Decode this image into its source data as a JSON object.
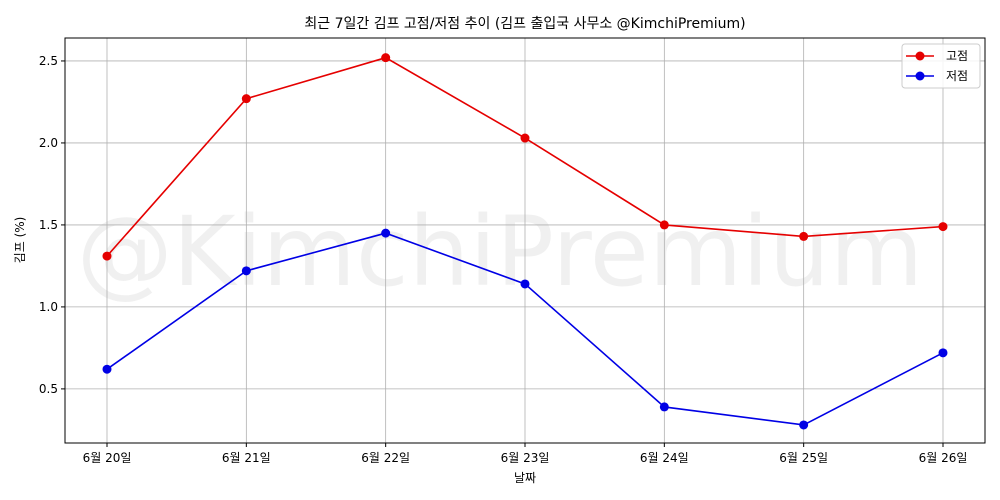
{
  "chart_data": {
    "type": "line",
    "title": "최근 7일간 김프 고점/저점 추이 (김프 출입국 사무소 @KimchiPremium)",
    "xlabel": "날짜",
    "ylabel": "김프 (%)",
    "categories": [
      "6월 20일",
      "6월 21일",
      "6월 22일",
      "6월 23일",
      "6월 24일",
      "6월 25일",
      "6월 26일"
    ],
    "series": [
      {
        "name": "고점",
        "color": "#e50000",
        "values": [
          1.31,
          2.27,
          2.52,
          2.03,
          1.5,
          1.43,
          1.49
        ]
      },
      {
        "name": "저점",
        "color": "#0000e5",
        "values": [
          0.62,
          1.22,
          1.45,
          1.14,
          0.39,
          0.28,
          0.72
        ]
      }
    ],
    "ylim": [
      0.17,
      2.64
    ],
    "yticks": [
      0.5,
      1.0,
      1.5,
      2.0,
      2.5
    ],
    "ytick_labels": [
      "0.5",
      "1.0",
      "1.5",
      "2.0",
      "2.5"
    ],
    "grid": true,
    "legend_position": "top-right",
    "watermark": "@KimchiPremium"
  }
}
